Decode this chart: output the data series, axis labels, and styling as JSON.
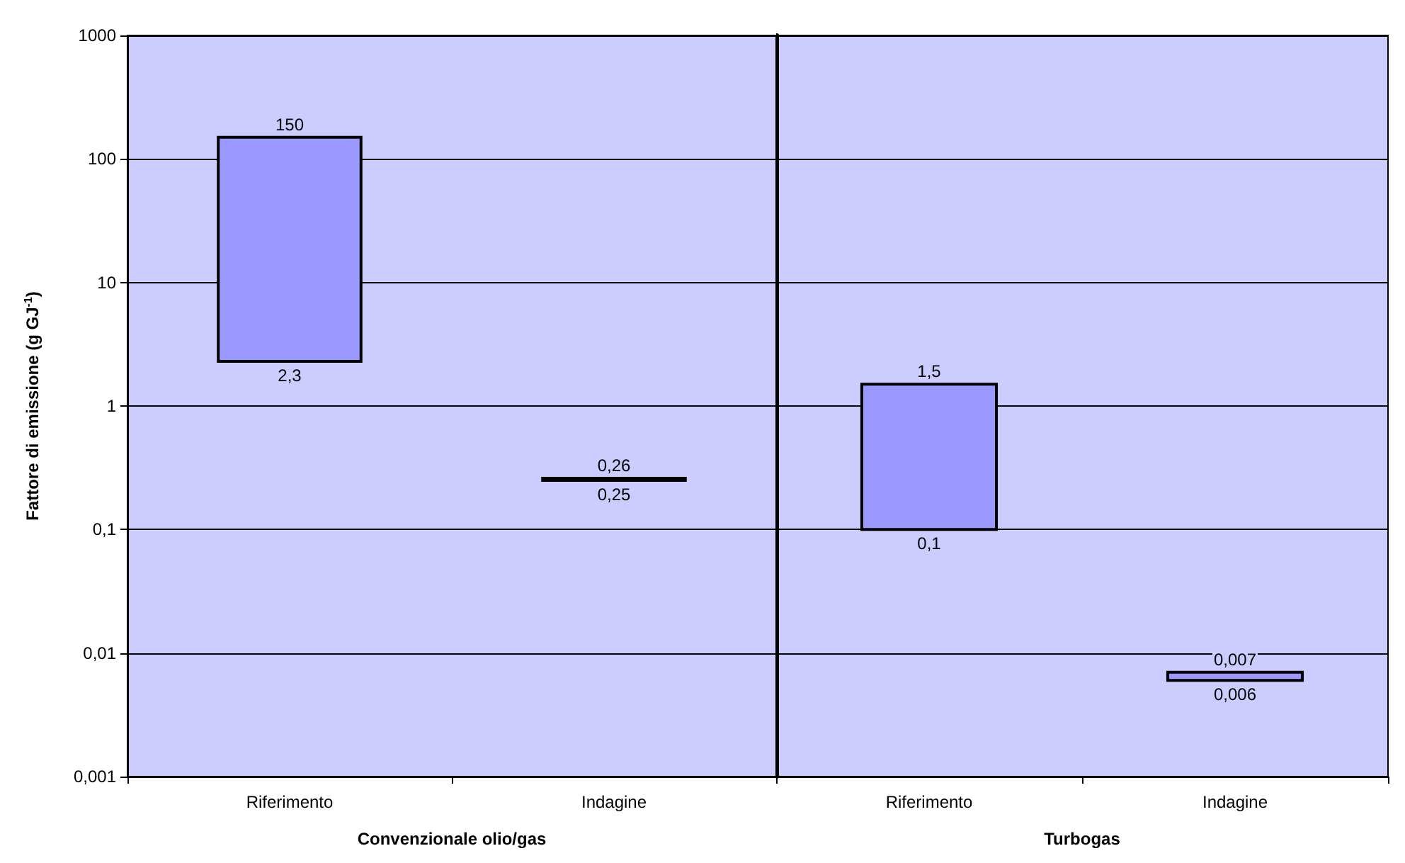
{
  "chart_data": [
    {
      "type": "bar",
      "xlabel": "Convenzionale olio/gas",
      "ylabel": "Fattore di emissione (g GJ$^{-1}$)",
      "categories": [
        "Riferimento",
        "Indagine"
      ],
      "base": [
        2.3,
        0.25
      ],
      "values": [
        147.7,
        0.01
      ],
      "color": "#9999ff",
      "log": true,
      "ylim": [
        0.001,
        1000
      ],
      "yticks": [
        {
          "value": 0.001,
          "label": "0,001"
        },
        {
          "value": 0.01,
          "label": "0,01"
        },
        {
          "value": 0.1,
          "label": "0,1"
        },
        {
          "value": 1,
          "label": "1"
        },
        {
          "value": 10,
          "label": "10"
        },
        {
          "value": 100,
          "label": "100"
        },
        {
          "value": 1000,
          "label": "1000"
        }
      ],
      "grid": "y",
      "annotations": [
        {
          "text": "150",
          "x": "Riferimento",
          "y": 150
        },
        {
          "text": "2,3",
          "x": "Riferimento",
          "y": 2.3
        },
        {
          "text": "0,26",
          "x": "Indagine",
          "y": 0.26
        },
        {
          "text": "0,25",
          "x": "Indagine",
          "y": 0.25
        }
      ]
    },
    {
      "type": "bar",
      "xlabel": "Turbogas",
      "categories": [
        "Riferimento",
        "Indagine"
      ],
      "base": [
        0.1,
        0.006
      ],
      "values": [
        1.4,
        0.001
      ],
      "color": "#9999ff",
      "log": true,
      "ylim": [
        0.001,
        1000
      ],
      "yticks": [
        0.001,
        0.01,
        0.1,
        1,
        10,
        100,
        1000
      ],
      "grid": "y",
      "tick_labels": "x",
      "annotations": [
        {
          "text": "1,5",
          "x": "Riferimento",
          "y": 1.5
        },
        {
          "text": "0,1",
          "x": "Riferimento",
          "y": 0.1
        },
        {
          "text": "0,007",
          "x": "Indagine",
          "y": 0.007
        },
        {
          "text": "0,006",
          "x": "Indagine",
          "y": 0.006
        }
      ]
    }
  ]
}
